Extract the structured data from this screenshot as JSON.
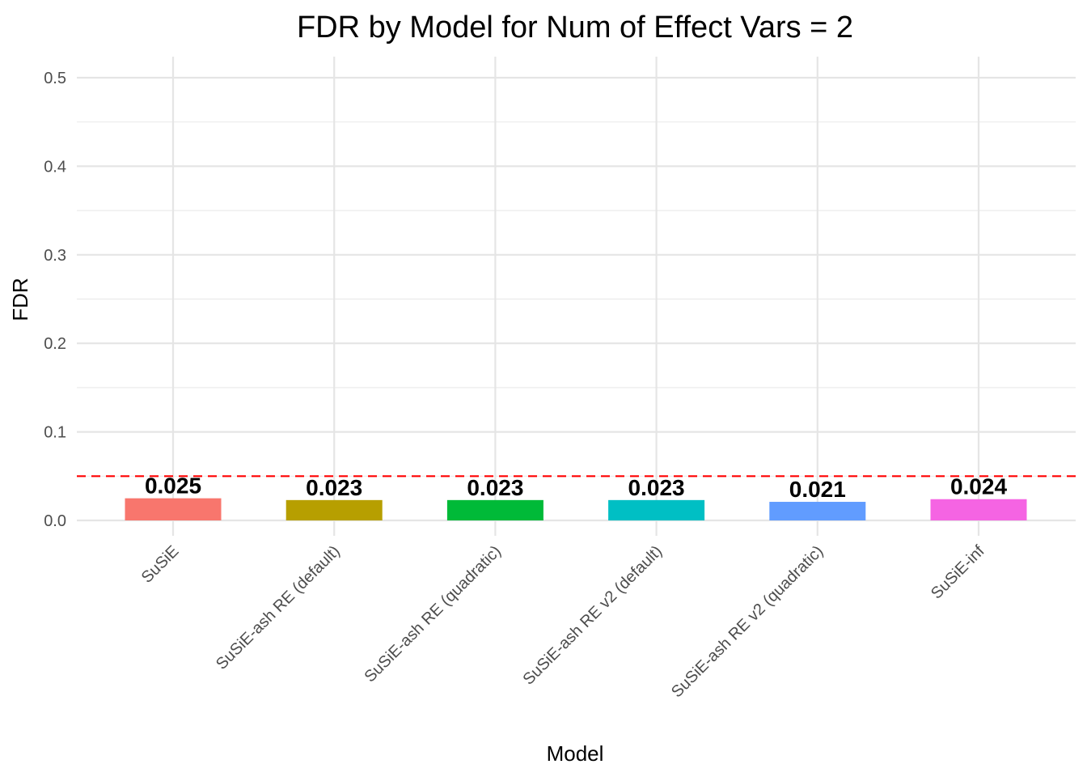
{
  "chart_data": {
    "type": "bar",
    "title": "FDR by Model for Num of Effect Vars = 2",
    "xlabel": "Model",
    "ylabel": "FDR",
    "categories": [
      "SuSiE",
      "SuSiE-ash RE (default)",
      "SuSiE-ash RE (quadratic)",
      "SuSiE-ash RE v2 (default)",
      "SuSiE-ash RE v2 (quadratic)",
      "SuSiE-inf"
    ],
    "values": [
      0.025,
      0.023,
      0.023,
      0.023,
      0.021,
      0.024
    ],
    "data_labels": [
      "0.025",
      "0.023",
      "0.023",
      "0.023",
      "0.021",
      "0.024"
    ],
    "colors": [
      "#F8766D",
      "#B79F00",
      "#00BA38",
      "#00BFC4",
      "#619CFF",
      "#F564E3"
    ],
    "ylim": [
      0,
      0.5
    ],
    "yticks": [
      0.0,
      0.1,
      0.2,
      0.3,
      0.4,
      0.5
    ],
    "ytick_labels": [
      "0.0",
      "0.1",
      "0.2",
      "0.3",
      "0.4",
      "0.5"
    ],
    "reference_line": {
      "y": 0.05,
      "style": "dashed",
      "color": "#FF0000"
    },
    "grid": true,
    "legend": "none"
  }
}
